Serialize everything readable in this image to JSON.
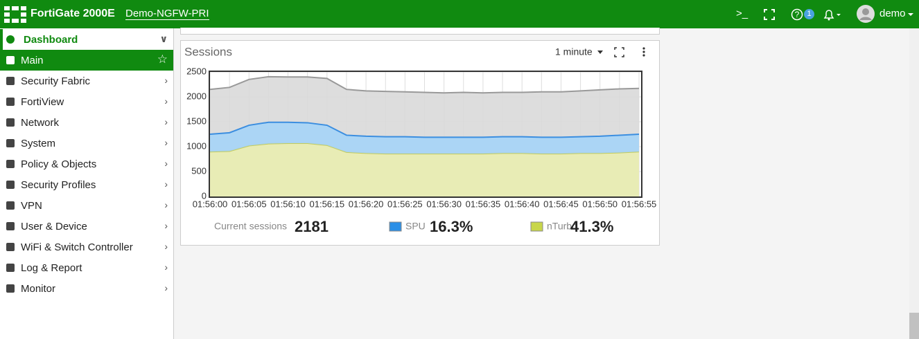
{
  "header": {
    "brand": "FortiGate 2000E",
    "hostname": "Demo-NGFW-PRI",
    "help_badge": "1",
    "user": "demo"
  },
  "sidebar": {
    "items": [
      "Dashboard",
      "Main",
      "Security Fabric",
      "FortiView",
      "Network",
      "System",
      "Policy & Objects",
      "Security Profiles",
      "VPN",
      "User & Device",
      "WiFi & Switch Controller",
      "Log & Report",
      "Monitor"
    ]
  },
  "widget": {
    "title": "Sessions",
    "interval": "1 minute"
  },
  "chart_data": {
    "type": "area",
    "x": [
      "01:56:00",
      null,
      "01:56:05",
      null,
      "01:56:10",
      null,
      "01:56:15",
      null,
      "01:56:20",
      null,
      "01:56:25",
      null,
      "01:56:30",
      null,
      "01:56:35",
      null,
      "01:56:40",
      null,
      "01:56:45",
      null,
      "01:56:50",
      null,
      "01:56:55"
    ],
    "series": [
      {
        "name": "Current sessions",
        "color": "#999999",
        "fill": "#d9d9d9",
        "stacked": false,
        "summary": "2181",
        "values": [
          2150,
          2190,
          2350,
          2405,
          2400,
          2400,
          2370,
          2150,
          2120,
          2110,
          2100,
          2090,
          2080,
          2090,
          2080,
          2090,
          2090,
          2100,
          2100,
          2120,
          2140,
          2160,
          2170
        ]
      },
      {
        "name": "nTurbo",
        "color": "#c5cc5e",
        "fill": "#e9edb0",
        "swatch": "#c8d64a",
        "stacked": true,
        "summary": "41.3%",
        "values": [
          900,
          910,
          1020,
          1060,
          1070,
          1070,
          1030,
          890,
          870,
          860,
          860,
          860,
          860,
          860,
          860,
          870,
          870,
          860,
          860,
          870,
          870,
          880,
          900
        ]
      },
      {
        "name": "SPU",
        "color": "#3b8ee0",
        "fill": "#a5d4f7",
        "swatch": "#2b8fe6",
        "stacked": true,
        "summary": "16.3%",
        "values": [
          350,
          370,
          410,
          430,
          420,
          410,
          400,
          340,
          340,
          340,
          340,
          330,
          330,
          330,
          330,
          330,
          330,
          330,
          330,
          330,
          340,
          350,
          350
        ]
      }
    ],
    "ylim": [
      0,
      2500
    ],
    "yticks": [
      0,
      500,
      1000,
      1500,
      2000,
      2500
    ],
    "grid": true
  }
}
